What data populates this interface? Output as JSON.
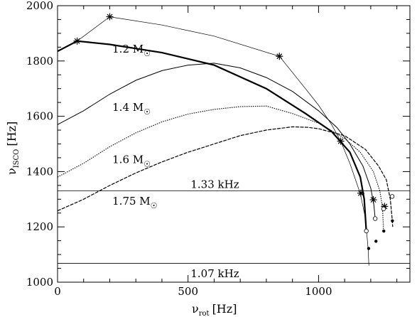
{
  "chart_data": {
    "type": "line",
    "xlabel": {
      "symbol": "ν",
      "sub": "rot",
      "unit": "[Hz]"
    },
    "ylabel": {
      "symbol": "ν",
      "sub": "ISCO",
      "unit": "[Hz]"
    },
    "xlim": [
      0,
      1350
    ],
    "ylim": [
      1000,
      2000
    ],
    "xticks": [
      0,
      500,
      1000
    ],
    "yticks": [
      1000,
      1200,
      1400,
      1600,
      1800,
      2000
    ],
    "grid": false,
    "hlines": [
      {
        "y": 1330,
        "label": "1.33 kHz"
      },
      {
        "y": 1068,
        "label": "1.07 kHz"
      }
    ],
    "series": [
      {
        "name": "1.2 M☉",
        "style": "solid-thick",
        "points": [
          [
            0,
            1835
          ],
          [
            75,
            1872
          ],
          [
            200,
            1860
          ],
          [
            400,
            1830
          ],
          [
            600,
            1785
          ],
          [
            800,
            1700
          ],
          [
            950,
            1610
          ],
          [
            1050,
            1545
          ],
          [
            1120,
            1470
          ],
          [
            1160,
            1380
          ],
          [
            1175,
            1300
          ],
          [
            1180,
            1230
          ],
          [
            1183,
            1185
          ]
        ]
      },
      {
        "name": "1.4 M☉",
        "style": "solid",
        "points": [
          [
            0,
            1570
          ],
          [
            100,
            1620
          ],
          [
            200,
            1680
          ],
          [
            300,
            1730
          ],
          [
            400,
            1765
          ],
          [
            500,
            1785
          ],
          [
            600,
            1792
          ],
          [
            700,
            1775
          ],
          [
            800,
            1740
          ],
          [
            900,
            1690
          ],
          [
            1000,
            1620
          ],
          [
            1070,
            1560
          ],
          [
            1120,
            1500
          ],
          [
            1170,
            1420
          ],
          [
            1200,
            1340
          ],
          [
            1212,
            1280
          ],
          [
            1217,
            1230
          ]
        ]
      },
      {
        "name": "1.6 M☉",
        "style": "dotted",
        "points": [
          [
            0,
            1380
          ],
          [
            100,
            1430
          ],
          [
            200,
            1490
          ],
          [
            300,
            1540
          ],
          [
            400,
            1580
          ],
          [
            500,
            1608
          ],
          [
            600,
            1625
          ],
          [
            700,
            1635
          ],
          [
            800,
            1637
          ],
          [
            900,
            1610
          ],
          [
            1000,
            1575
          ],
          [
            1100,
            1520
          ],
          [
            1160,
            1470
          ],
          [
            1210,
            1400
          ],
          [
            1235,
            1330
          ],
          [
            1245,
            1270
          ],
          [
            1248,
            1210
          ],
          [
            1249,
            1185
          ]
        ]
      },
      {
        "name": "1.75 M☉",
        "style": "dashed",
        "points": [
          [
            0,
            1258
          ],
          [
            100,
            1300
          ],
          [
            200,
            1350
          ],
          [
            300,
            1395
          ],
          [
            400,
            1435
          ],
          [
            500,
            1470
          ],
          [
            600,
            1500
          ],
          [
            700,
            1530
          ],
          [
            800,
            1550
          ],
          [
            900,
            1562
          ],
          [
            960,
            1560
          ],
          [
            1000,
            1555
          ],
          [
            1100,
            1530
          ],
          [
            1180,
            1480
          ],
          [
            1230,
            1420
          ],
          [
            1260,
            1370
          ],
          [
            1275,
            1300
          ],
          [
            1282,
            1230
          ],
          [
            1284,
            1200
          ]
        ]
      },
      {
        "name": "",
        "style": "thin-markers",
        "points": [
          [
            0,
            1835
          ],
          [
            75,
            1872
          ],
          [
            200,
            1960
          ],
          [
            400,
            1930
          ],
          [
            600,
            1890
          ],
          [
            850,
            1817
          ],
          [
            950,
            1700
          ],
          [
            1000,
            1640
          ],
          [
            1050,
            1570
          ],
          [
            1085,
            1510
          ],
          [
            1120,
            1430
          ],
          [
            1160,
            1320
          ],
          [
            1180,
            1230
          ],
          [
            1190,
            1120
          ],
          [
            1193,
            1060
          ]
        ]
      }
    ],
    "star_markers": [
      [
        75,
        1872
      ],
      [
        200,
        1960
      ],
      [
        850,
        1817
      ],
      [
        1085,
        1510
      ],
      [
        1162,
        1322
      ],
      [
        1210,
        1298
      ],
      [
        1253,
        1274
      ]
    ],
    "open_circles": [
      [
        1183,
        1185
      ],
      [
        1217,
        1230
      ],
      [
        1249,
        1265
      ],
      [
        1282,
        1310
      ]
    ],
    "filled_dots": [
      [
        1192,
        1122
      ],
      [
        1220,
        1148
      ],
      [
        1250,
        1185
      ],
      [
        1283,
        1222
      ]
    ],
    "annotations": [
      {
        "text": "1.2 M",
        "sym": "☉",
        "x": 210,
        "y": 1830
      },
      {
        "text": "1.4 M",
        "sym": "☉",
        "x": 210,
        "y": 1620
      },
      {
        "text": "1.6 M",
        "sym": "☉",
        "x": 210,
        "y": 1430
      },
      {
        "text": "1.75 M",
        "sym": "☉",
        "x": 210,
        "y": 1280
      },
      {
        "text": "1.33 kHz",
        "x": 510,
        "y": 1340
      },
      {
        "text": "1.07 kHz",
        "x": 510,
        "y": 1018
      }
    ]
  }
}
